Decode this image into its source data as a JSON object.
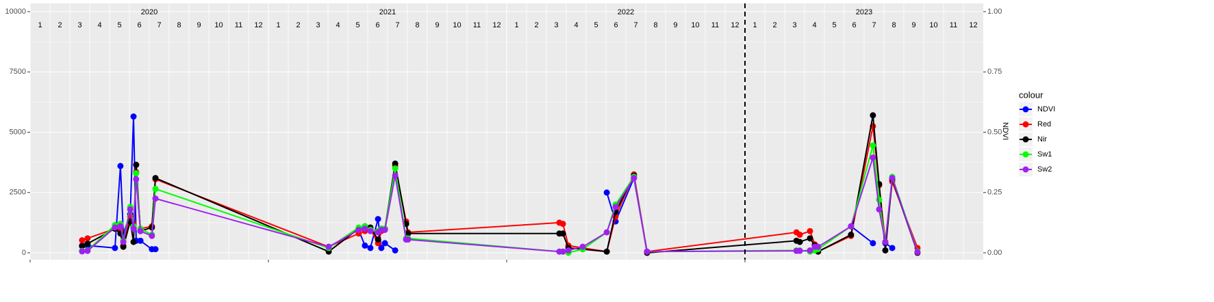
{
  "chart_data": {
    "type": "line",
    "years": [
      "2020",
      "2021",
      "2022",
      "2023"
    ],
    "months": [
      "1",
      "2",
      "3",
      "4",
      "5",
      "6",
      "7",
      "8",
      "9",
      "10",
      "11",
      "12"
    ],
    "x": [
      2020.218,
      2020.241,
      2020.356,
      2020.379,
      2020.391,
      2020.42,
      2020.434,
      2020.445,
      2020.463,
      2020.511,
      2020.526,
      2021.253,
      2021.379,
      2021.405,
      2021.428,
      2021.46,
      2021.474,
      2021.489,
      2021.532,
      2021.578,
      2021.586,
      2022.221,
      2022.236,
      2022.259,
      2022.319,
      2022.42,
      2022.457,
      2022.534,
      2022.589,
      2023.216,
      2023.23,
      2023.273,
      2023.293,
      2023.307,
      2023.445,
      2023.537,
      2023.563,
      2023.589,
      2023.618,
      2023.724
    ],
    "xlim": [
      2020,
      2024
    ],
    "xticks": [
      2020,
      2021,
      2022,
      2023
    ],
    "vline": 2023,
    "ylim": [
      -283,
      10340
    ],
    "yticks": [
      0,
      2500,
      5000,
      7500,
      10000
    ],
    "y2lim": [
      -0.0283,
      1.034
    ],
    "y2ticks": [
      {
        "value": 0,
        "label": "0.00"
      },
      0.25,
      {
        "value": 0.5,
        "label": "0.50"
      },
      0.75,
      {
        "value": 1,
        "label": "1.00"
      }
    ],
    "y2_label": "NDVI",
    "legend_title": "colour",
    "legend_position": "right",
    "grid": true,
    "series": [
      {
        "name": "NDVI",
        "color": "#0000ff",
        "axis": "y2",
        "values": [
          0.03,
          0.03,
          0.02,
          0.36,
          0.08,
          0.16,
          0.565,
          0.05,
          0.05,
          0.015,
          0.015,
          null,
          0.095,
          0.03,
          0.02,
          0.14,
          0.02,
          0.04,
          0.01,
          null,
          null,
          null,
          null,
          null,
          null,
          0.25,
          0.13,
          0.31,
          0.005,
          null,
          null,
          null,
          null,
          null,
          0.11,
          0.04,
          null,
          0.04,
          0.02,
          null
        ]
      },
      {
        "name": "Red",
        "color": "#ff0000",
        "values": [
          520,
          600,
          1000,
          900,
          300,
          1500,
          1200,
          3350,
          1000,
          1100,
          3050,
          250,
          800,
          900,
          1000,
          400,
          900,
          1000,
          3600,
          1300,
          850,
          1250,
          1200,
          300,
          200,
          50,
          1500,
          3250,
          50,
          850,
          750,
          900,
          350,
          50,
          700,
          5250,
          2800,
          450,
          2950,
          200
        ]
      },
      {
        "name": "Nir",
        "color": "#000000",
        "values": [
          280,
          380,
          1000,
          800,
          250,
          1300,
          450,
          3650,
          900,
          1050,
          3100,
          50,
          1000,
          1100,
          1050,
          550,
          1000,
          1000,
          3700,
          1200,
          800,
          800,
          800,
          200,
          150,
          50,
          1700,
          3200,
          0,
          500,
          450,
          600,
          300,
          50,
          750,
          5700,
          2850,
          100,
          3050,
          0
        ]
      },
      {
        "name": "Sw1",
        "color": "#00ff00",
        "values": [
          80,
          100,
          1150,
          1200,
          500,
          1900,
          1100,
          3300,
          1000,
          750,
          2650,
          200,
          1050,
          1100,
          950,
          900,
          1000,
          1000,
          3500,
          600,
          600,
          50,
          50,
          0,
          150,
          850,
          2000,
          3150,
          50,
          100,
          100,
          50,
          100,
          150,
          1100,
          4450,
          2200,
          450,
          3150,
          50
        ]
      },
      {
        "name": "Sw2",
        "color": "#a020f0",
        "values": [
          60,
          80,
          1050,
          1100,
          450,
          1800,
          1000,
          3050,
          900,
          700,
          2250,
          250,
          950,
          1000,
          900,
          850,
          950,
          950,
          3200,
          550,
          550,
          50,
          50,
          100,
          250,
          850,
          1900,
          3100,
          50,
          80,
          80,
          100,
          250,
          250,
          1100,
          3950,
          1800,
          450,
          3100,
          30
        ]
      }
    ]
  }
}
